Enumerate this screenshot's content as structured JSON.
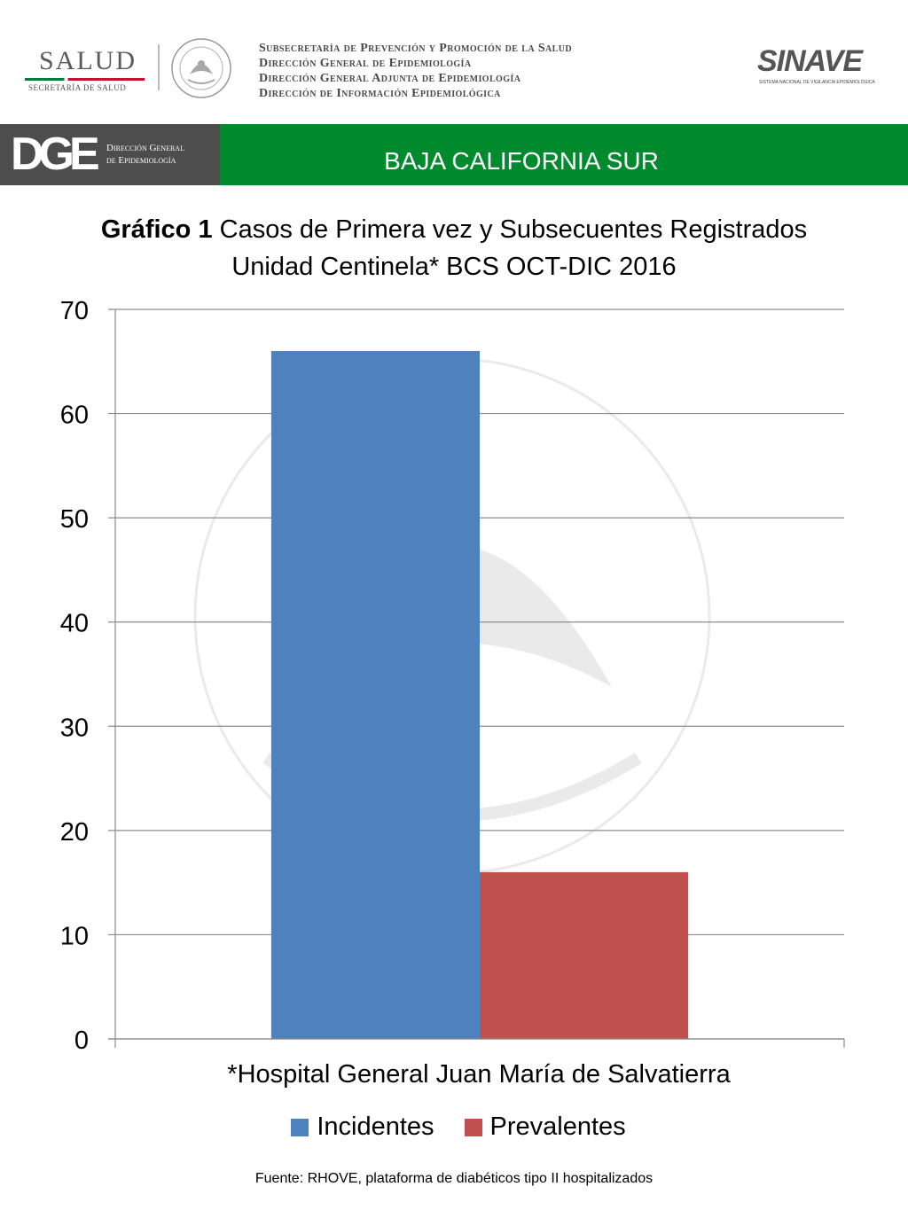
{
  "header": {
    "salud_word": "SALUD",
    "salud_sub": "SECRETARÍA DE SALUD",
    "sub_lines": [
      "Subsecretaría de Prevención y Promoción de la Salud",
      "Dirección General de Epidemiología",
      "Dirección General Adjunta de Epidemiología",
      "Dirección de Información Epidemiológica"
    ],
    "sinave_word": "SINAVE",
    "sinave_sub": "SISTEMA NACIONAL DE VIGILANCIA EPIDEMIOLÓGICA"
  },
  "banner": {
    "dge_letters": "DGE",
    "dge_text_1": "Dirección General",
    "dge_text_2": "de Epidemiología",
    "state": "BAJA CALIFORNIA SUR",
    "dark_color": "#4d4d4d",
    "green_color": "#008a2e"
  },
  "chart_data": {
    "type": "bar",
    "title_bold": "Gráfico 1",
    "title_rest": " Casos de Primera vez y Subsecuentes Registrados",
    "title_line2": "Unidad Centinela* BCS OCT-DIC 2016",
    "categories": [
      "*Hospital General Juan María de Salvatierra"
    ],
    "series": [
      {
        "name": "Incidentes",
        "values": [
          66
        ],
        "color": "#4f81bd"
      },
      {
        "name": "Prevalentes",
        "values": [
          16
        ],
        "color": "#c0504d"
      }
    ],
    "ylim": [
      0,
      70
    ],
    "yticks": [
      0,
      10,
      20,
      30,
      40,
      50,
      60,
      70
    ],
    "grid": true,
    "legend": "bottom"
  },
  "footer": "Fuente: RHOVE, plataforma de diabéticos tipo II hospitalizados"
}
